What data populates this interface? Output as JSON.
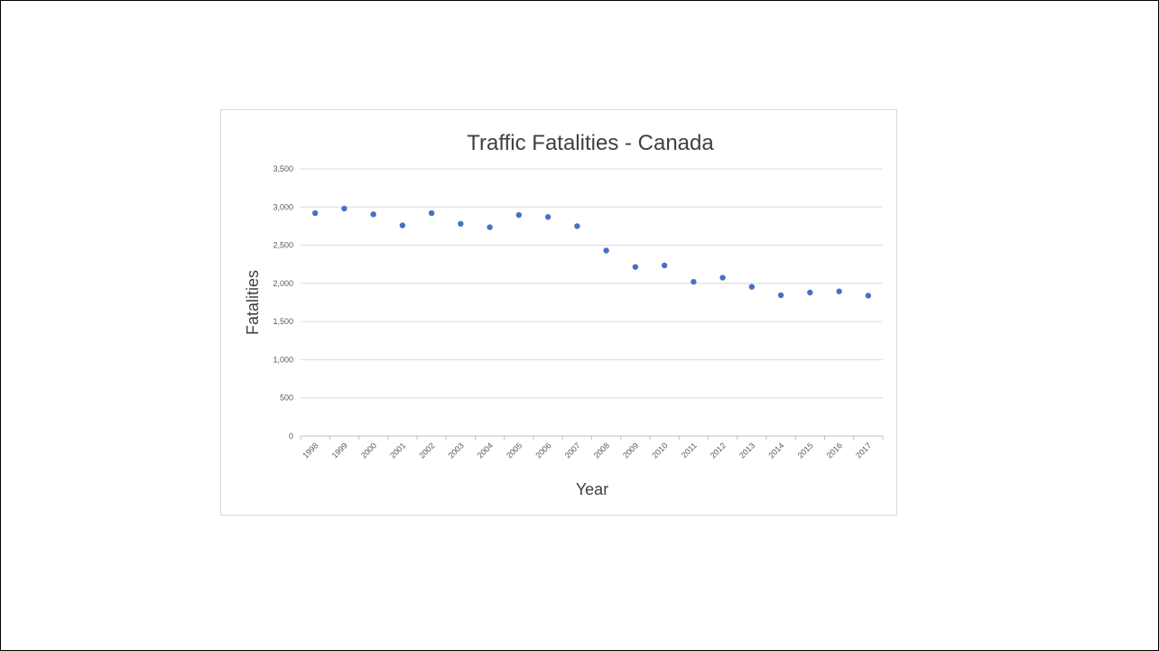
{
  "chart_data": {
    "type": "scatter",
    "title": "Traffic Fatalities - Canada",
    "xlabel": "Year",
    "ylabel": "Fatalities",
    "x": [
      "1998",
      "1999",
      "2000",
      "2001",
      "2002",
      "2003",
      "2004",
      "2005",
      "2006",
      "2007",
      "2008",
      "2009",
      "2010",
      "2011",
      "2012",
      "2013",
      "2014",
      "2015",
      "2016",
      "2017"
    ],
    "y": [
      2920,
      2980,
      2905,
      2760,
      2920,
      2780,
      2735,
      2895,
      2870,
      2750,
      2430,
      2215,
      2235,
      2020,
      2075,
      1955,
      1845,
      1880,
      1895,
      1840
    ],
    "ylim": [
      0,
      3500
    ],
    "yticks": [
      0,
      500,
      1000,
      1500,
      2000,
      2500,
      3000,
      3500
    ],
    "ytick_labels": [
      "0",
      "500",
      "1,000",
      "1,500",
      "2,000",
      "2,500",
      "3,000",
      "3,500"
    ],
    "grid": true,
    "legend": "none",
    "marker_color": "#4472c4",
    "gridline_color": "#d9d9d9"
  }
}
